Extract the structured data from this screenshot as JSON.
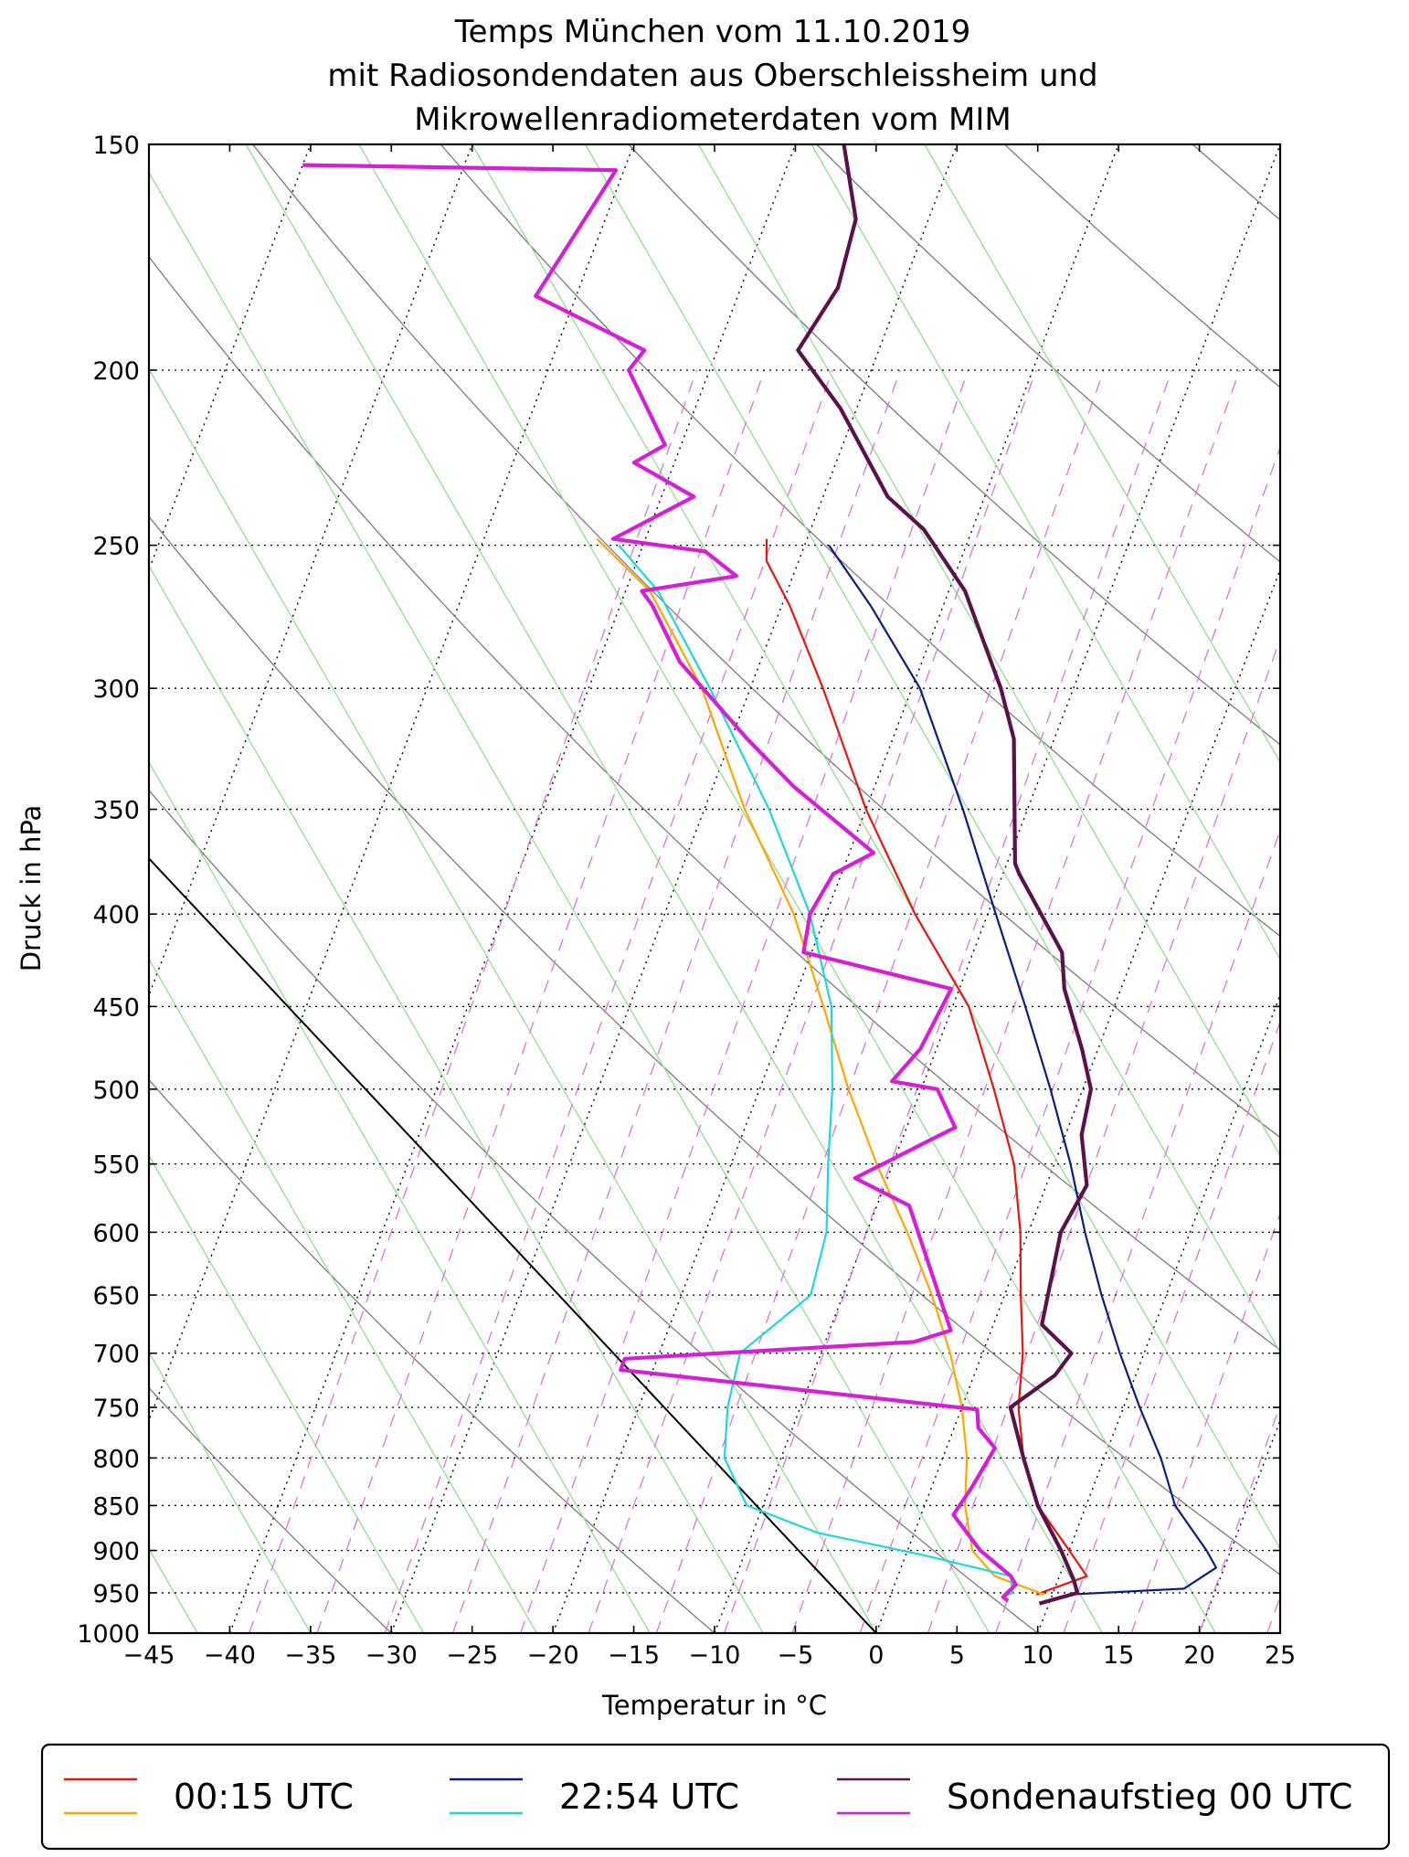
{
  "chart_data": {
    "type": "line",
    "title_lines": [
      "Temps München vom 11.10.2019",
      "mit Radiosondendaten aus Oberschleissheim und",
      "Mikrowellenradiometerdaten vom MIM"
    ],
    "xlabel": "Temperatur in °C",
    "ylabel": "Druck in hPa",
    "xlim": [
      -45,
      25
    ],
    "ylim": [
      1000,
      150
    ],
    "y_scale": "log",
    "skew": "temperature lines skewed right with height (skew-T log-p)",
    "x_ticks": [
      "−45",
      "−40",
      "−35",
      "−30",
      "−25",
      "−20",
      "−15",
      "−10",
      "−5",
      "0",
      "5",
      "10",
      "15",
      "20",
      "25"
    ],
    "y_ticks": [
      "150",
      "200",
      "250",
      "300",
      "350",
      "400",
      "450",
      "500",
      "550",
      "600",
      "650",
      "700",
      "750",
      "800",
      "850",
      "900",
      "950",
      "1000"
    ],
    "grid": true,
    "legend": {
      "placement": "bottom",
      "entries": [
        {
          "label": "00:15 UTC",
          "colors": [
            "#e8150d",
            "#ffa500"
          ]
        },
        {
          "label": "22:54 UTC",
          "colors": [
            "#0b1c86",
            "#1ed8d8"
          ]
        },
        {
          "label": "Sondenaufstieg 00 UTC",
          "colors": [
            "#5a1248",
            "#d61ed6"
          ]
        }
      ]
    },
    "series": [
      {
        "name": "00:15 UTC",
        "variable": "temperature",
        "color": "#e8150d",
        "points": [
          [
            9.0,
            952
          ],
          [
            11.7,
            930
          ],
          [
            10.0,
            900
          ],
          [
            7.0,
            850
          ],
          [
            5.0,
            800
          ],
          [
            3.5,
            750
          ],
          [
            2.5,
            700
          ],
          [
            1.0,
            650
          ],
          [
            -0.5,
            600
          ],
          [
            -2.5,
            550
          ],
          [
            -5.5,
            500
          ],
          [
            -9.0,
            450
          ],
          [
            -14.5,
            400
          ],
          [
            -20.0,
            350
          ],
          [
            -25.5,
            300
          ],
          [
            -29.5,
            270
          ],
          [
            -32.0,
            255
          ],
          [
            -32.5,
            248
          ]
        ]
      },
      {
        "name": "00:15 UTC",
        "variable": "dewpoint",
        "color": "#ffa500",
        "points": [
          [
            9.5,
            952
          ],
          [
            6.0,
            930
          ],
          [
            4.0,
            900
          ],
          [
            2.5,
            850
          ],
          [
            1.5,
            800
          ],
          [
            0.0,
            750
          ],
          [
            -2.0,
            700
          ],
          [
            -4.5,
            650
          ],
          [
            -7.5,
            600
          ],
          [
            -11.0,
            550
          ],
          [
            -14.5,
            500
          ],
          [
            -18.0,
            450
          ],
          [
            -22.0,
            400
          ],
          [
            -27.5,
            350
          ],
          [
            -33.0,
            300
          ],
          [
            -38.5,
            265
          ],
          [
            -43.0,
            248
          ]
        ]
      },
      {
        "name": "22:54 UTC",
        "variable": "temperature",
        "color": "#0b1c86",
        "points": [
          [
            11.0,
            952
          ],
          [
            18.0,
            945
          ],
          [
            19.5,
            920
          ],
          [
            18.5,
            900
          ],
          [
            15.5,
            850
          ],
          [
            13.5,
            800
          ],
          [
            11.0,
            750
          ],
          [
            8.5,
            700
          ],
          [
            6.0,
            650
          ],
          [
            3.5,
            600
          ],
          [
            1.0,
            550
          ],
          [
            -2.0,
            500
          ],
          [
            -5.5,
            450
          ],
          [
            -9.5,
            400
          ],
          [
            -14.0,
            350
          ],
          [
            -19.5,
            300
          ],
          [
            -24.5,
            270
          ],
          [
            -28.5,
            250
          ]
        ]
      },
      {
        "name": "22:54 UTC",
        "variable": "dewpoint",
        "color": "#1ed8d8",
        "points": [
          [
            7.0,
            955
          ],
          [
            7.5,
            950
          ],
          [
            7.0,
            930
          ],
          [
            1.0,
            905
          ],
          [
            -6.0,
            880
          ],
          [
            -11.0,
            850
          ],
          [
            -13.5,
            800
          ],
          [
            -14.5,
            750
          ],
          [
            -15.0,
            700
          ],
          [
            -12.0,
            650
          ],
          [
            -12.5,
            600
          ],
          [
            -14.0,
            550
          ],
          [
            -15.5,
            500
          ],
          [
            -17.5,
            450
          ],
          [
            -21.0,
            400
          ],
          [
            -26.0,
            350
          ],
          [
            -32.5,
            300
          ],
          [
            -38.0,
            265
          ],
          [
            -41.5,
            250
          ]
        ]
      },
      {
        "name": "Sondenaufstieg 00 UTC",
        "variable": "temperature",
        "color": "#5a1248",
        "points": [
          [
            9.4,
            963
          ],
          [
            11.5,
            950
          ],
          [
            11.0,
            935
          ],
          [
            9.5,
            900
          ],
          [
            7.0,
            850
          ],
          [
            5.0,
            800
          ],
          [
            3.0,
            750
          ],
          [
            5.0,
            720
          ],
          [
            5.5,
            700
          ],
          [
            3.0,
            675
          ],
          [
            2.0,
            600
          ],
          [
            2.5,
            565
          ],
          [
            1.0,
            530
          ],
          [
            0.5,
            500
          ],
          [
            -1.0,
            475
          ],
          [
            -3.5,
            440
          ],
          [
            -4.5,
            420
          ],
          [
            -9.0,
            380
          ],
          [
            -9.5,
            375
          ],
          [
            -12.5,
            320
          ],
          [
            -14.5,
            300
          ],
          [
            -19.0,
            265
          ],
          [
            -23.0,
            245
          ],
          [
            -26.0,
            235
          ],
          [
            -31.0,
            210
          ],
          [
            -35.0,
            195
          ],
          [
            -34.0,
            180
          ],
          [
            -34.5,
            165
          ],
          [
            -37.0,
            150
          ]
        ]
      },
      {
        "name": "Sondenaufstieg 00 UTC",
        "variable": "dewpoint",
        "color": "#d61ed6",
        "points": [
          [
            7.4,
            960
          ],
          [
            7.0,
            955
          ],
          [
            7.5,
            940
          ],
          [
            7.0,
            930
          ],
          [
            4.5,
            900
          ],
          [
            2.0,
            860
          ],
          [
            2.5,
            830
          ],
          [
            3.0,
            790
          ],
          [
            1.5,
            770
          ],
          [
            1.0,
            752
          ],
          [
            -22.0,
            715
          ],
          [
            -22.0,
            705
          ],
          [
            -4.5,
            690
          ],
          [
            -2.5,
            680
          ],
          [
            -8.0,
            580
          ],
          [
            -12.0,
            560
          ],
          [
            -7.0,
            525
          ],
          [
            -9.0,
            500
          ],
          [
            -12.0,
            495
          ],
          [
            -11.0,
            475
          ],
          [
            -10.5,
            440
          ],
          [
            -20.5,
            420
          ],
          [
            -21.0,
            400
          ],
          [
            -20.5,
            380
          ],
          [
            -18.5,
            370
          ],
          [
            -25.0,
            340
          ],
          [
            -29.0,
            320
          ],
          [
            -35.0,
            290
          ],
          [
            -38.0,
            270
          ],
          [
            -39.0,
            265
          ],
          [
            -33.5,
            260
          ],
          [
            -36.0,
            252
          ],
          [
            -42.0,
            248
          ],
          [
            -38.0,
            235
          ],
          [
            -42.5,
            225
          ],
          [
            -41.0,
            220
          ],
          [
            -45.0,
            200
          ],
          [
            -44.5,
            195
          ],
          [
            -52.5,
            182
          ],
          [
            -50.5,
            155
          ],
          [
            -70.0,
            154
          ]
        ]
      }
    ],
    "background_lines": {
      "isotherms": "dotted black",
      "dry_adiabats": "gray",
      "moist_adiabats": "light green",
      "mixing_ratio_lines": "dashed magenta",
      "reference_line": "black solid"
    }
  }
}
